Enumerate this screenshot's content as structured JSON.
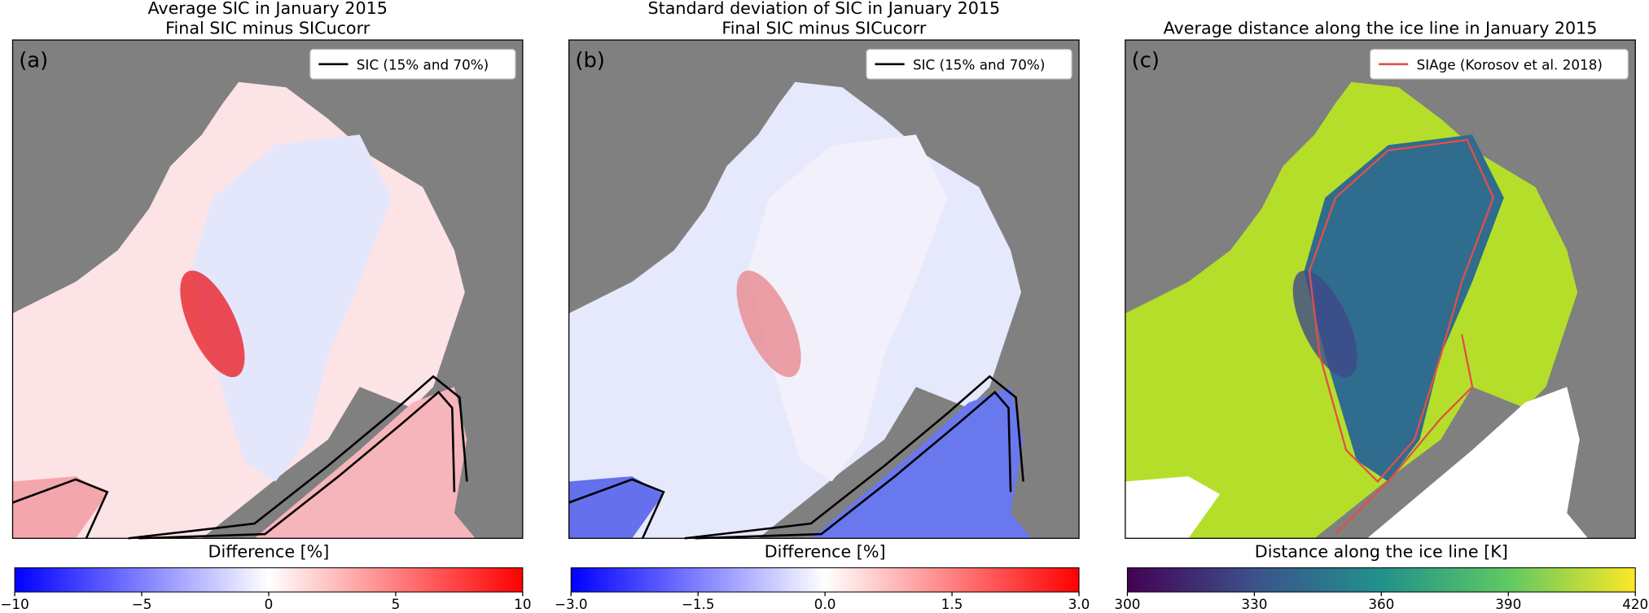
{
  "panels": [
    {
      "title": [
        "Average SIC in January 2015",
        "Final SIC minus SICucorr"
      ],
      "label": "(a)",
      "legend": "SIC (15% and 70%)",
      "legend_color": "#000000",
      "colorbar": {
        "label": "Difference [%]",
        "lim": [
          -10,
          10
        ],
        "colormap": [
          "#0000ff",
          "#ffffff",
          "#ff0000"
        ],
        "ticks": [
          {
            "value": -10,
            "label": "−10"
          },
          {
            "value": -5,
            "label": "−5"
          },
          0,
          5,
          10
        ]
      }
    },
    {
      "title": [
        "Standard deviation of SIC in January 2015",
        "Final SIC minus SICucorr"
      ],
      "label": "(b)",
      "legend": "SIC (15% and 70%)",
      "legend_color": "#000000",
      "colorbar": {
        "label": "Difference [%]",
        "lim": [
          -3,
          3
        ],
        "colormap": [
          "#0000ff",
          "#ffffff",
          "#ff0000"
        ],
        "ticks": [
          {
            "value": -3,
            "label": "−3.0"
          },
          {
            "value": -1.5,
            "label": "−1.5"
          },
          {
            "value": 0,
            "label": "0.0"
          },
          {
            "value": 1.5,
            "label": "1.5"
          },
          {
            "value": 3,
            "label": "3.0"
          }
        ]
      }
    },
    {
      "title": [
        "Average distance along the ice line in January 2015"
      ],
      "label": "(c)",
      "legend": "SIAge (Korosov et al. 2018)",
      "legend_color": "#e0504a",
      "colorbar": {
        "label": "Distance along the ice line [K]",
        "lim": [
          300,
          420
        ],
        "colormap": [
          "#440154",
          "#3b528b",
          "#21918c",
          "#5ec962",
          "#fde725"
        ],
        "ticks": [
          300,
          330,
          360,
          390,
          420
        ]
      }
    }
  ]
}
